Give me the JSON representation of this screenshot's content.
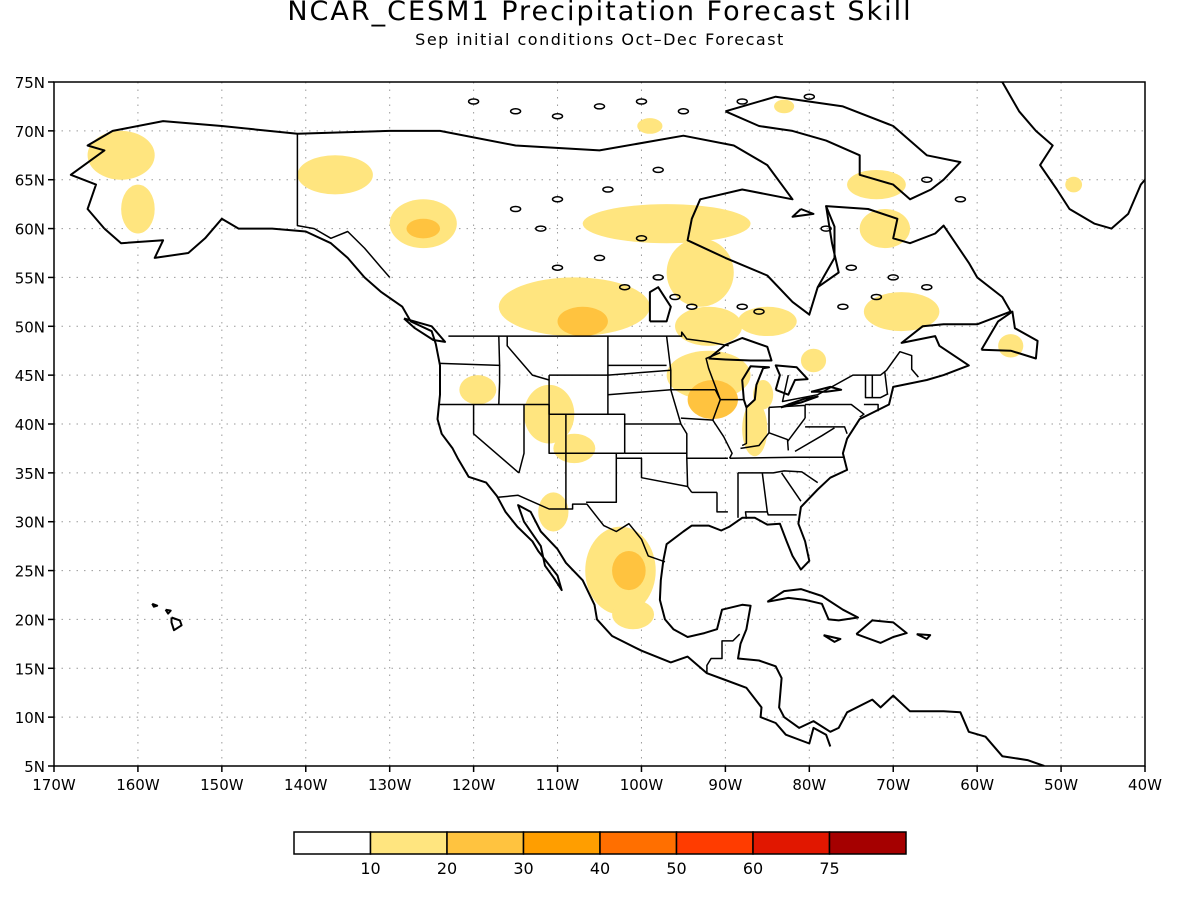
{
  "title": "NCAR_CESM1 Precipitation Forecast Skill",
  "subtitle": "Sep initial conditions  Oct–Dec Forecast",
  "map": {
    "lat_range": [
      5,
      75
    ],
    "lon_range": [
      -170,
      -40
    ],
    "lat_ticks": [
      "5N",
      "10N",
      "15N",
      "20N",
      "25N",
      "30N",
      "35N",
      "40N",
      "45N",
      "50N",
      "55N",
      "60N",
      "65N",
      "70N",
      "75N"
    ],
    "lon_ticks": [
      "170W",
      "160W",
      "150W",
      "140W",
      "130W",
      "120W",
      "110W",
      "100W",
      "90W",
      "80W",
      "70W",
      "60W",
      "50W",
      "40W"
    ],
    "grid": "dotted"
  },
  "skill_regions": [
    {
      "name": "alaska-west",
      "lon": -162,
      "lat": 67.5,
      "level": 1
    },
    {
      "name": "alaska-southwest",
      "lon": -160,
      "lat": 62,
      "level": 1
    },
    {
      "name": "yukon",
      "lon": -136.5,
      "lat": 65.5,
      "level": 1
    },
    {
      "name": "british-columbia-north",
      "lon": -126,
      "lat": 60.5,
      "level": 1
    },
    {
      "name": "british-columbia-core",
      "lon": -126,
      "lat": 60,
      "level": 2
    },
    {
      "name": "northwest-territories-east",
      "lon": -97,
      "lat": 60.5,
      "level": 1
    },
    {
      "name": "manitoba",
      "lon": -93,
      "lat": 55.5,
      "level": 1
    },
    {
      "name": "prairies",
      "lon": -108,
      "lat": 52,
      "level": 1
    },
    {
      "name": "prairies-core",
      "lon": -107,
      "lat": 50.5,
      "level": 2
    },
    {
      "name": "ontario-west",
      "lon": -92,
      "lat": 50,
      "level": 1
    },
    {
      "name": "ontario-east",
      "lon": -85,
      "lat": 50.5,
      "level": 1
    },
    {
      "name": "quebec-north",
      "lon": -71,
      "lat": 60,
      "level": 1
    },
    {
      "name": "ungava",
      "lon": -72,
      "lat": 64.5,
      "level": 1
    },
    {
      "name": "quebec-south",
      "lon": -69,
      "lat": 51.5,
      "level": 1
    },
    {
      "name": "labrador-coast",
      "lon": -56,
      "lat": 48,
      "level": 1
    },
    {
      "name": "ontario-south",
      "lon": -79.5,
      "lat": 46.5,
      "level": 1
    },
    {
      "name": "upper-midwest",
      "lon": -92,
      "lat": 45,
      "level": 1
    },
    {
      "name": "iowa-wisconsin",
      "lon": -91.5,
      "lat": 42.5,
      "level": 2
    },
    {
      "name": "indiana",
      "lon": -86.5,
      "lat": 39.5,
      "level": 1
    },
    {
      "name": "michigan",
      "lon": -85.5,
      "lat": 43,
      "level": 1
    },
    {
      "name": "idaho",
      "lon": -119.5,
      "lat": 43.5,
      "level": 1
    },
    {
      "name": "utah-colorado",
      "lon": -111,
      "lat": 41,
      "level": 1
    },
    {
      "name": "colorado-south",
      "lon": -108,
      "lat": 37.5,
      "level": 1
    },
    {
      "name": "arizona-sonora",
      "lon": -110.5,
      "lat": 31,
      "level": 1
    },
    {
      "name": "mexico-central",
      "lon": -102.5,
      "lat": 25,
      "level": 1
    },
    {
      "name": "mexico-central-core",
      "lon": -101.5,
      "lat": 25,
      "level": 2
    },
    {
      "name": "mexico-south",
      "lon": -101,
      "lat": 20.5,
      "level": 1
    },
    {
      "name": "greenland-coast",
      "lon": -48.5,
      "lat": 64.5,
      "level": 1
    },
    {
      "name": "arctic-islands",
      "lon": -99,
      "lat": 70.5,
      "level": 1
    },
    {
      "name": "baffin",
      "lon": -83,
      "lat": 72.5,
      "level": 1
    }
  ],
  "colorbar": {
    "colors": [
      "#ffffff",
      "#ffe57f",
      "#ffc33f",
      "#ff9e00",
      "#ff6f00",
      "#ff3c00",
      "#e11700",
      "#a50000"
    ],
    "labels": [
      "10",
      "20",
      "30",
      "40",
      "50",
      "60",
      "75"
    ]
  }
}
